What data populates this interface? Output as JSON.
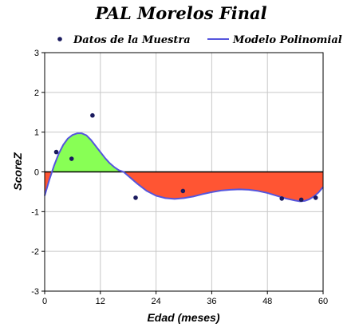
{
  "chart_data": {
    "type": "line",
    "title": "PAL Morelos Final",
    "xlabel": "Edad (meses)",
    "ylabel": "ScoreZ",
    "xlim": [
      0,
      60
    ],
    "ylim": [
      -3,
      3
    ],
    "xticks": [
      "0",
      "12",
      "24",
      "36",
      "48",
      "60"
    ],
    "yticks": [
      "3",
      "2",
      "1",
      "0",
      "-1",
      "-2",
      "-3"
    ],
    "grid": true,
    "legend_position": "top",
    "series": [
      {
        "name": "Datos de la Muestra",
        "kind": "scatter",
        "color": "#1a1a5e",
        "points": [
          {
            "x": 2.5,
            "y": 0.5
          },
          {
            "x": 5.8,
            "y": 0.33
          },
          {
            "x": 10.3,
            "y": 1.42
          },
          {
            "x": 19.6,
            "y": -0.65
          },
          {
            "x": 29.8,
            "y": -0.48
          },
          {
            "x": 51.1,
            "y": -0.67
          },
          {
            "x": 55.3,
            "y": -0.7
          },
          {
            "x": 58.4,
            "y": -0.65
          }
        ]
      },
      {
        "name": "Modelo Polinomial",
        "kind": "line",
        "color": "#5555dd",
        "points": [
          {
            "x": 0,
            "y": -0.6
          },
          {
            "x": 1,
            "y": -0.2
          },
          {
            "x": 2,
            "y": 0.15
          },
          {
            "x": 3,
            "y": 0.45
          },
          {
            "x": 4,
            "y": 0.68
          },
          {
            "x": 5,
            "y": 0.84
          },
          {
            "x": 6,
            "y": 0.93
          },
          {
            "x": 7,
            "y": 0.97
          },
          {
            "x": 8,
            "y": 0.97
          },
          {
            "x": 9,
            "y": 0.92
          },
          {
            "x": 10,
            "y": 0.8
          },
          {
            "x": 11,
            "y": 0.65
          },
          {
            "x": 12,
            "y": 0.5
          },
          {
            "x": 13,
            "y": 0.35
          },
          {
            "x": 14,
            "y": 0.22
          },
          {
            "x": 15,
            "y": 0.12
          },
          {
            "x": 16,
            "y": 0.04
          },
          {
            "x": 17,
            "y": 0.0
          },
          {
            "x": 18,
            "y": -0.1
          },
          {
            "x": 20,
            "y": -0.3
          },
          {
            "x": 22,
            "y": -0.48
          },
          {
            "x": 24,
            "y": -0.6
          },
          {
            "x": 26,
            "y": -0.66
          },
          {
            "x": 28,
            "y": -0.68
          },
          {
            "x": 30,
            "y": -0.66
          },
          {
            "x": 32,
            "y": -0.62
          },
          {
            "x": 34,
            "y": -0.56
          },
          {
            "x": 36,
            "y": -0.51
          },
          {
            "x": 38,
            "y": -0.47
          },
          {
            "x": 40,
            "y": -0.45
          },
          {
            "x": 42,
            "y": -0.44
          },
          {
            "x": 44,
            "y": -0.45
          },
          {
            "x": 46,
            "y": -0.48
          },
          {
            "x": 48,
            "y": -0.53
          },
          {
            "x": 50,
            "y": -0.6
          },
          {
            "x": 52,
            "y": -0.67
          },
          {
            "x": 54,
            "y": -0.72
          },
          {
            "x": 55,
            "y": -0.74
          },
          {
            "x": 56,
            "y": -0.73
          },
          {
            "x": 57,
            "y": -0.69
          },
          {
            "x": 58,
            "y": -0.62
          },
          {
            "x": 59,
            "y": -0.52
          },
          {
            "x": 60,
            "y": -0.38
          }
        ]
      }
    ],
    "fill_positive_color": "#88ff55",
    "fill_negative_color": "#ff5533"
  }
}
